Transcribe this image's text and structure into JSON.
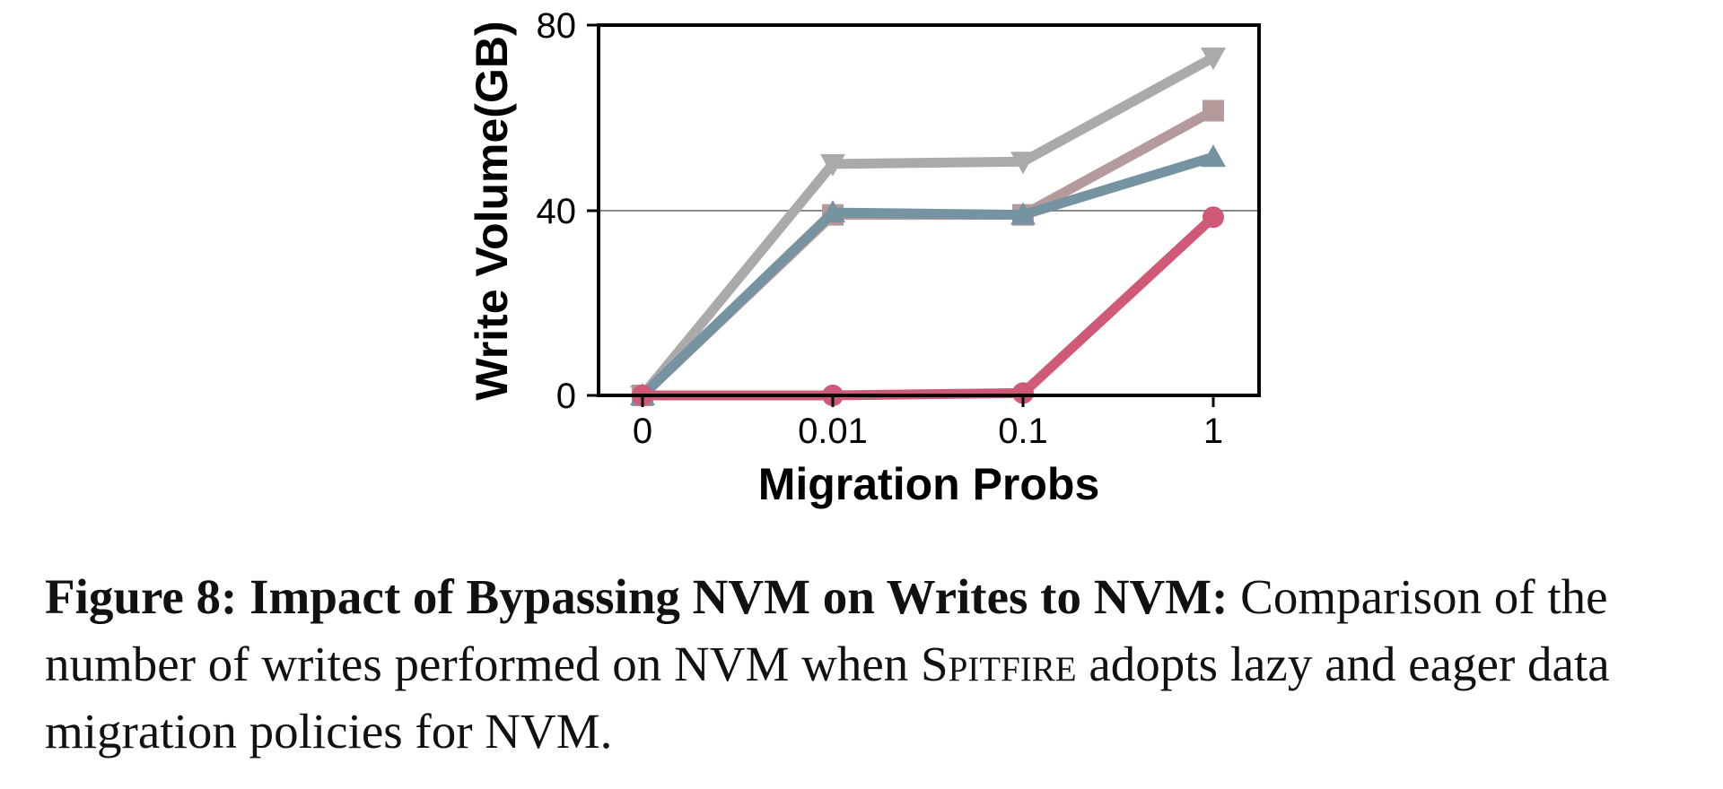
{
  "chart_data": {
    "type": "line",
    "xlabel": "Migration Probs",
    "ylabel": "Write Volume(GB)",
    "categories": [
      "0",
      "0.01",
      "0.1",
      "1"
    ],
    "ylim": [
      0,
      80
    ],
    "yticks": [
      "0",
      "40",
      "80"
    ],
    "grid": "horizontal line at 40",
    "legend": "none",
    "series": [
      {
        "color": "#aaaaaa",
        "marker": "triangle-down",
        "values": [
          0,
          50,
          50.5,
          73
        ]
      },
      {
        "color": "#b49a9a",
        "marker": "square",
        "values": [
          0,
          39,
          39,
          61.5
        ]
      },
      {
        "color": "#7593a0",
        "marker": "triangle-up",
        "values": [
          0,
          39.5,
          39,
          51.5
        ]
      },
      {
        "color": "#cf5a78",
        "marker": "circle",
        "values": [
          0,
          0,
          0.5,
          38.5
        ]
      }
    ]
  },
  "caption": {
    "lead": "Figure 8: Impact of Bypassing NVM on Writes to NVM:",
    "text_before": " Comparison of the number of writes performed on NVM when ",
    "system_name": "Spitfire",
    "text_after": " adopts lazy and eager data migration policies for NVM."
  }
}
